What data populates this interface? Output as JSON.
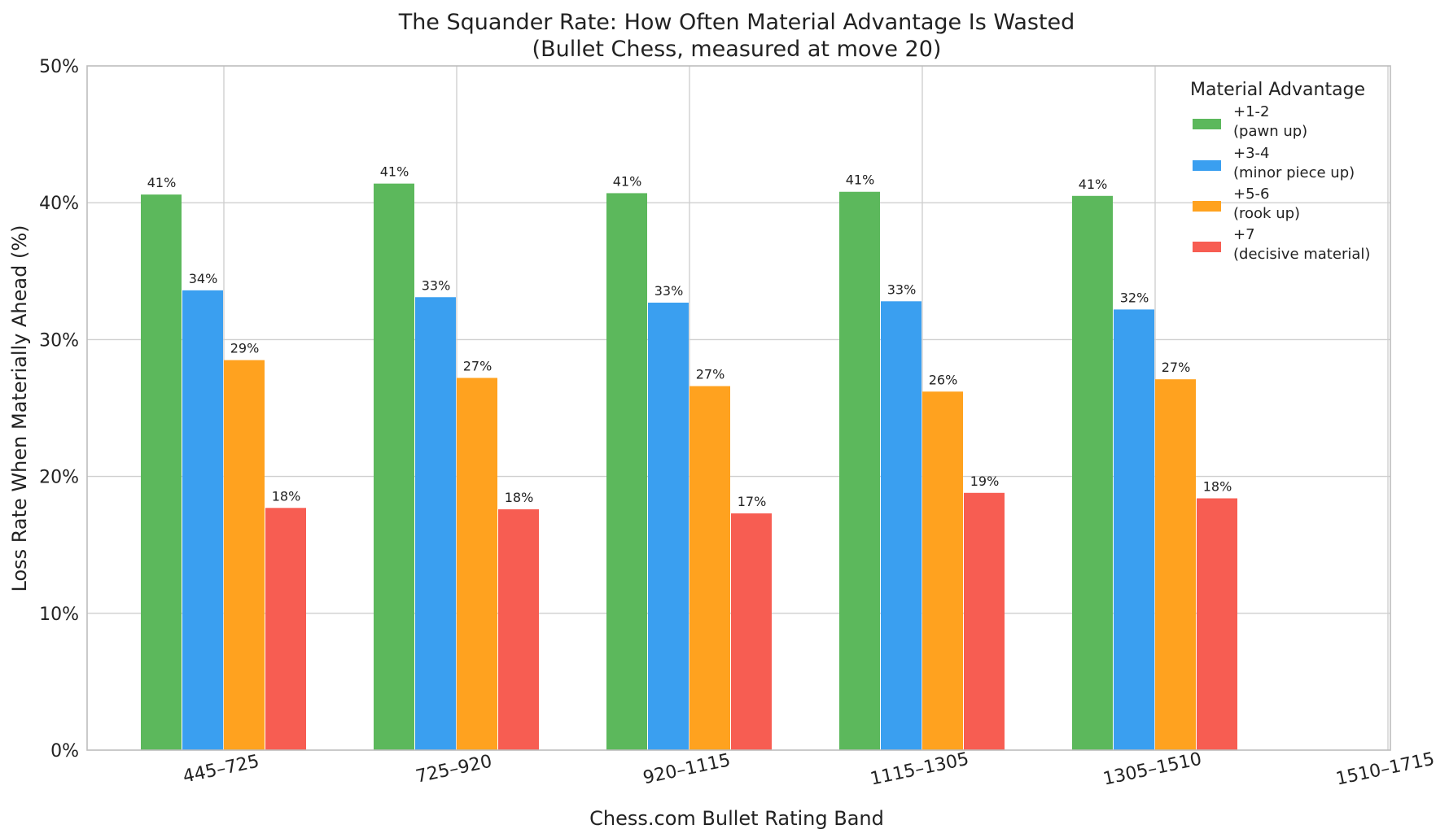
{
  "chart_data": {
    "type": "bar",
    "title": "The Squander Rate: How Often Material Advantage Is Wasted",
    "subtitle": "(Bullet Chess, measured at move 20)",
    "xlabel": "Chess.com Bullet Rating Band",
    "ylabel": "Loss Rate When Materially Ahead (%)",
    "ylim": [
      0,
      50
    ],
    "yticks": [
      "0%",
      "10%",
      "20%",
      "30%",
      "40%",
      "50%"
    ],
    "ytick_values": [
      0,
      10,
      20,
      30,
      40,
      50
    ],
    "categories": [
      "445–725",
      "725–920",
      "920–1115",
      "1115–1305",
      "1305–1510",
      "1510–1715"
    ],
    "grid": true,
    "legend": {
      "title": "Material Advantage",
      "placement": "top-right"
    },
    "series": [
      {
        "name": "+1-2",
        "subname": "(pawn up)",
        "color": "#5cb85c",
        "values": [
          40.6,
          41.4,
          40.7,
          40.8,
          40.5,
          null
        ],
        "labels": [
          "41%",
          "41%",
          "41%",
          "41%",
          "41%",
          ""
        ]
      },
      {
        "name": "+3-4",
        "subname": "(minor piece up)",
        "color": "#3a9ff0",
        "values": [
          33.6,
          33.1,
          32.7,
          32.8,
          32.2,
          null
        ],
        "labels": [
          "34%",
          "33%",
          "33%",
          "33%",
          "32%",
          ""
        ]
      },
      {
        "name": "+5-6",
        "subname": "(rook up)",
        "color": "#ffa21f",
        "values": [
          28.5,
          27.2,
          26.6,
          26.2,
          27.1,
          null
        ],
        "labels": [
          "29%",
          "27%",
          "27%",
          "26%",
          "27%",
          ""
        ]
      },
      {
        "name": "+7",
        "subname": "(decisive material)",
        "color": "#f75d52",
        "values": [
          17.7,
          17.6,
          17.3,
          18.8,
          18.4,
          null
        ],
        "labels": [
          "18%",
          "18%",
          "17%",
          "19%",
          "18%",
          ""
        ]
      }
    ]
  }
}
